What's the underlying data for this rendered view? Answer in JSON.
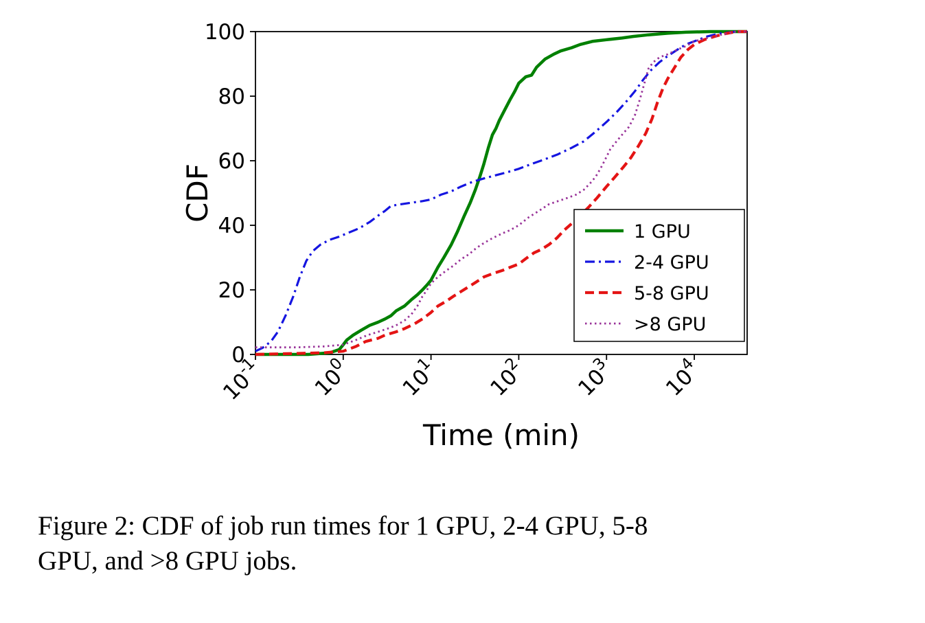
{
  "caption": {
    "lines": [
      "Figure 2:  CDF of job run times for 1 GPU, 2-4 GPU, 5-8",
      "GPU, and >8 GPU jobs."
    ]
  },
  "chart_data": {
    "type": "line",
    "title": "",
    "xlabel": "Time (min)",
    "ylabel": "CDF",
    "x_scale": "log",
    "xlim": [
      0.1,
      40000
    ],
    "ylim": [
      0,
      100
    ],
    "grid": false,
    "legend_position": "center right",
    "x_ticks": [
      {
        "value": 0.1,
        "label": "10^-1"
      },
      {
        "value": 1,
        "label": "10^0"
      },
      {
        "value": 10,
        "label": "10^1"
      },
      {
        "value": 100,
        "label": "10^2"
      },
      {
        "value": 1000,
        "label": "10^3"
      },
      {
        "value": 10000,
        "label": "10^4"
      }
    ],
    "y_ticks": [
      0,
      20,
      40,
      60,
      80,
      100
    ],
    "series": [
      {
        "name": "1 GPU",
        "color": "#008000",
        "style": "solid",
        "points": [
          [
            0.1,
            0
          ],
          [
            0.4,
            0
          ],
          [
            0.7,
            0.5
          ],
          [
            0.9,
            1.5
          ],
          [
            1,
            3
          ],
          [
            1.1,
            4.5
          ],
          [
            1.3,
            6
          ],
          [
            1.6,
            7.5
          ],
          [
            2,
            9
          ],
          [
            2.5,
            10
          ],
          [
            3,
            11
          ],
          [
            3.5,
            12
          ],
          [
            4,
            13.5
          ],
          [
            5,
            15
          ],
          [
            6,
            17
          ],
          [
            7,
            18.5
          ],
          [
            8,
            20
          ],
          [
            9,
            21.5
          ],
          [
            10,
            23
          ],
          [
            12,
            27
          ],
          [
            14,
            30
          ],
          [
            17,
            34
          ],
          [
            20,
            38
          ],
          [
            24,
            43
          ],
          [
            28,
            47
          ],
          [
            32,
            51
          ],
          [
            36,
            55
          ],
          [
            40,
            59
          ],
          [
            45,
            64
          ],
          [
            50,
            68
          ],
          [
            55,
            70
          ],
          [
            60,
            72.5
          ],
          [
            70,
            76
          ],
          [
            80,
            79
          ],
          [
            90,
            81.5
          ],
          [
            100,
            84
          ],
          [
            120,
            86
          ],
          [
            140,
            86.5
          ],
          [
            160,
            89
          ],
          [
            200,
            91.5
          ],
          [
            250,
            93
          ],
          [
            300,
            94
          ],
          [
            400,
            95
          ],
          [
            500,
            96
          ],
          [
            700,
            97
          ],
          [
            1000,
            97.5
          ],
          [
            1500,
            98
          ],
          [
            2000,
            98.5
          ],
          [
            3000,
            99
          ],
          [
            5000,
            99.5
          ],
          [
            8000,
            99.8
          ],
          [
            15000,
            100
          ],
          [
            40000,
            100
          ]
        ]
      },
      {
        "name": "2-4 GPU",
        "color": "#1515e0",
        "style": "dashdot",
        "points": [
          [
            0.1,
            1
          ],
          [
            0.12,
            2
          ],
          [
            0.15,
            4
          ],
          [
            0.18,
            7
          ],
          [
            0.22,
            12
          ],
          [
            0.27,
            18
          ],
          [
            0.32,
            24
          ],
          [
            0.38,
            29
          ],
          [
            0.45,
            32
          ],
          [
            0.55,
            34
          ],
          [
            0.7,
            35.5
          ],
          [
            0.9,
            36.5
          ],
          [
            1.1,
            37.5
          ],
          [
            1.5,
            39
          ],
          [
            2,
            41
          ],
          [
            2.5,
            43
          ],
          [
            3,
            44.5
          ],
          [
            3.5,
            46
          ],
          [
            4.5,
            46.5
          ],
          [
            6,
            47
          ],
          [
            8,
            47.5
          ],
          [
            10,
            48
          ],
          [
            13,
            49.5
          ],
          [
            17,
            50.5
          ],
          [
            22,
            52
          ],
          [
            30,
            53.5
          ],
          [
            40,
            54.5
          ],
          [
            55,
            55.5
          ],
          [
            75,
            56.5
          ],
          [
            100,
            57.5
          ],
          [
            140,
            59
          ],
          [
            200,
            60.5
          ],
          [
            280,
            62
          ],
          [
            400,
            64
          ],
          [
            550,
            66
          ],
          [
            750,
            69
          ],
          [
            1000,
            72
          ],
          [
            1300,
            75
          ],
          [
            1700,
            78.5
          ],
          [
            2100,
            81.5
          ],
          [
            2600,
            85
          ],
          [
            3200,
            88
          ],
          [
            4000,
            90.5
          ],
          [
            5000,
            92.5
          ],
          [
            6500,
            94.5
          ],
          [
            8000,
            96
          ],
          [
            10000,
            97
          ],
          [
            14000,
            98.5
          ],
          [
            20000,
            99.5
          ],
          [
            30000,
            100
          ],
          [
            40000,
            100
          ]
        ]
      },
      {
        "name": "5-8 GPU",
        "color": "#e41414",
        "style": "dashed",
        "points": [
          [
            0.1,
            0
          ],
          [
            0.6,
            0.5
          ],
          [
            1,
            1
          ],
          [
            1.4,
            2.5
          ],
          [
            1.8,
            4
          ],
          [
            2.5,
            5
          ],
          [
            3,
            6
          ],
          [
            4,
            7
          ],
          [
            5,
            8
          ],
          [
            6.5,
            9.5
          ],
          [
            8,
            11
          ],
          [
            10,
            13
          ],
          [
            12,
            15
          ],
          [
            15,
            16.5
          ],
          [
            18,
            18
          ],
          [
            22,
            19.5
          ],
          [
            27,
            21
          ],
          [
            33,
            22.5
          ],
          [
            40,
            24
          ],
          [
            50,
            25
          ],
          [
            65,
            26
          ],
          [
            80,
            27
          ],
          [
            100,
            28
          ],
          [
            125,
            30
          ],
          [
            150,
            31.5
          ],
          [
            180,
            32.5
          ],
          [
            220,
            34
          ],
          [
            270,
            36
          ],
          [
            330,
            38.5
          ],
          [
            400,
            40.5
          ],
          [
            500,
            43
          ],
          [
            620,
            45.5
          ],
          [
            780,
            48.5
          ],
          [
            1000,
            52
          ],
          [
            1250,
            55
          ],
          [
            1550,
            58
          ],
          [
            1900,
            61
          ],
          [
            2300,
            64.5
          ],
          [
            2800,
            68.5
          ],
          [
            3300,
            73
          ],
          [
            3800,
            78
          ],
          [
            4400,
            82.5
          ],
          [
            5000,
            85.5
          ],
          [
            6000,
            89
          ],
          [
            7000,
            92
          ],
          [
            8500,
            94.5
          ],
          [
            10000,
            96
          ],
          [
            13000,
            97.5
          ],
          [
            17000,
            98.5
          ],
          [
            22000,
            99.3
          ],
          [
            30000,
            100
          ],
          [
            40000,
            100
          ]
        ]
      },
      {
        "name": ">8 GPU",
        "color": "#993399",
        "style": "dotted",
        "points": [
          [
            0.1,
            2.2
          ],
          [
            0.3,
            2.2
          ],
          [
            0.6,
            2.5
          ],
          [
            1,
            3
          ],
          [
            1.4,
            4.5
          ],
          [
            1.9,
            6
          ],
          [
            2.5,
            7
          ],
          [
            3.2,
            8
          ],
          [
            4,
            9
          ],
          [
            5,
            10.5
          ],
          [
            6,
            12.5
          ],
          [
            7,
            15
          ],
          [
            8,
            18
          ],
          [
            9,
            20
          ],
          [
            10,
            22
          ],
          [
            12,
            24
          ],
          [
            15,
            26
          ],
          [
            18,
            27.5
          ],
          [
            22,
            29.5
          ],
          [
            27,
            31
          ],
          [
            33,
            33
          ],
          [
            40,
            34.5
          ],
          [
            50,
            36
          ],
          [
            65,
            37.5
          ],
          [
            80,
            38.5
          ],
          [
            100,
            40
          ],
          [
            130,
            42.5
          ],
          [
            170,
            44.5
          ],
          [
            220,
            46.5
          ],
          [
            280,
            47.5
          ],
          [
            360,
            48.5
          ],
          [
            450,
            49.5
          ],
          [
            550,
            51
          ],
          [
            650,
            53
          ],
          [
            750,
            55
          ],
          [
            850,
            57.5
          ],
          [
            950,
            60
          ],
          [
            1100,
            63.5
          ],
          [
            1300,
            66
          ],
          [
            1500,
            68
          ],
          [
            1800,
            70.5
          ],
          [
            2100,
            74
          ],
          [
            2400,
            79
          ],
          [
            2700,
            84
          ],
          [
            3000,
            88.5
          ],
          [
            3400,
            90.5
          ],
          [
            4000,
            92
          ],
          [
            5000,
            93
          ],
          [
            6500,
            94.5
          ],
          [
            8000,
            95.5
          ],
          [
            10000,
            97
          ],
          [
            14000,
            98
          ],
          [
            20000,
            99
          ],
          [
            30000,
            100
          ],
          [
            40000,
            100
          ]
        ]
      }
    ]
  }
}
